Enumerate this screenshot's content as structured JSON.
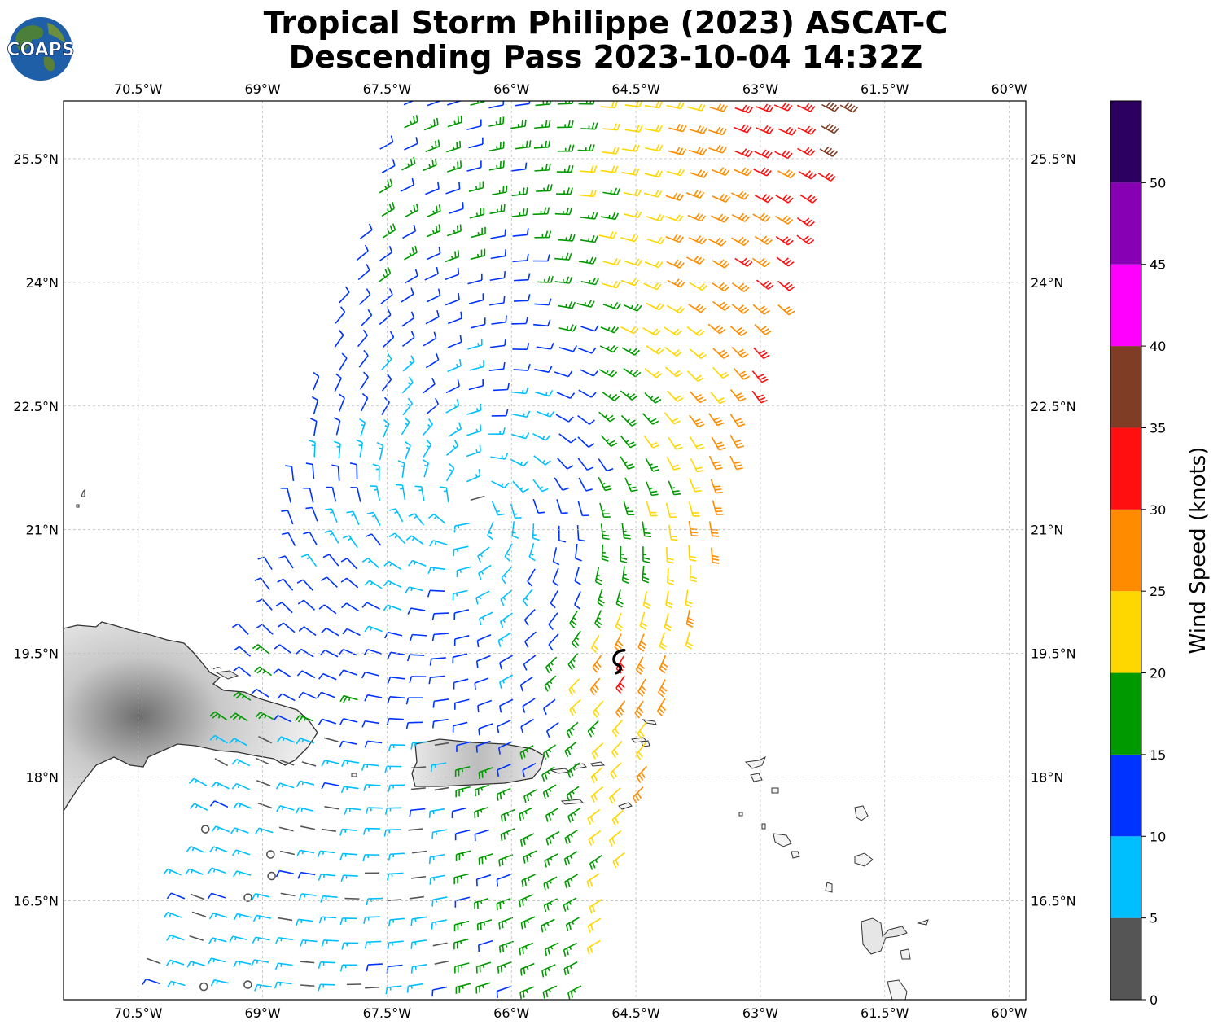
{
  "title": {
    "line1": "Tropical Storm Philippe (2023) ASCAT-C",
    "line2": "Descending Pass 2023-10-04 14:32Z"
  },
  "logo": {
    "text": "COAPS"
  },
  "map": {
    "lon_range": [
      -71.4,
      -59.8
    ],
    "lat_range": [
      15.3,
      26.2
    ],
    "lon_ticks": [
      {
        "value": -70.5,
        "label": "70.5°W"
      },
      {
        "value": -69.0,
        "label": "69°W"
      },
      {
        "value": -67.5,
        "label": "67.5°W"
      },
      {
        "value": -66.0,
        "label": "66°W"
      },
      {
        "value": -64.5,
        "label": "64.5°W"
      },
      {
        "value": -63.0,
        "label": "63°W"
      },
      {
        "value": -61.5,
        "label": "61.5°W"
      },
      {
        "value": -60.0,
        "label": "60°W"
      }
    ],
    "lat_ticks": [
      {
        "value": 25.5,
        "label": "25.5°N"
      },
      {
        "value": 24.0,
        "label": "24°N"
      },
      {
        "value": 22.5,
        "label": "22.5°N"
      },
      {
        "value": 21.0,
        "label": "21°N"
      },
      {
        "value": 19.5,
        "label": "19.5°N"
      },
      {
        "value": 18.0,
        "label": "18°N"
      },
      {
        "value": 16.5,
        "label": "16.5°N"
      }
    ],
    "storm_center": {
      "lon": -64.7,
      "lat": 19.4
    },
    "gridlines": true
  },
  "colorbar": {
    "label": "Wind Speed (knots)",
    "ticks": [
      "0",
      "5",
      "10",
      "15",
      "20",
      "25",
      "30",
      "35",
      "40",
      "45",
      "50"
    ],
    "bins": [
      {
        "min": 0,
        "max": 5,
        "color": "#555555"
      },
      {
        "min": 5,
        "max": 10,
        "color": "#00bfff"
      },
      {
        "min": 10,
        "max": 15,
        "color": "#0033ff"
      },
      {
        "min": 15,
        "max": 20,
        "color": "#009900"
      },
      {
        "min": 20,
        "max": 25,
        "color": "#ffd700"
      },
      {
        "min": 25,
        "max": 30,
        "color": "#ff8c00"
      },
      {
        "min": 30,
        "max": 35,
        "color": "#ff0f0f"
      },
      {
        "min": 35,
        "max": 40,
        "color": "#803d25"
      },
      {
        "min": 40,
        "max": 45,
        "color": "#ff00ff"
      },
      {
        "min": 45,
        "max": 50,
        "color": "#8800b3"
      },
      {
        "min": 50,
        "max": 55,
        "color": "#2b0060"
      }
    ]
  }
}
